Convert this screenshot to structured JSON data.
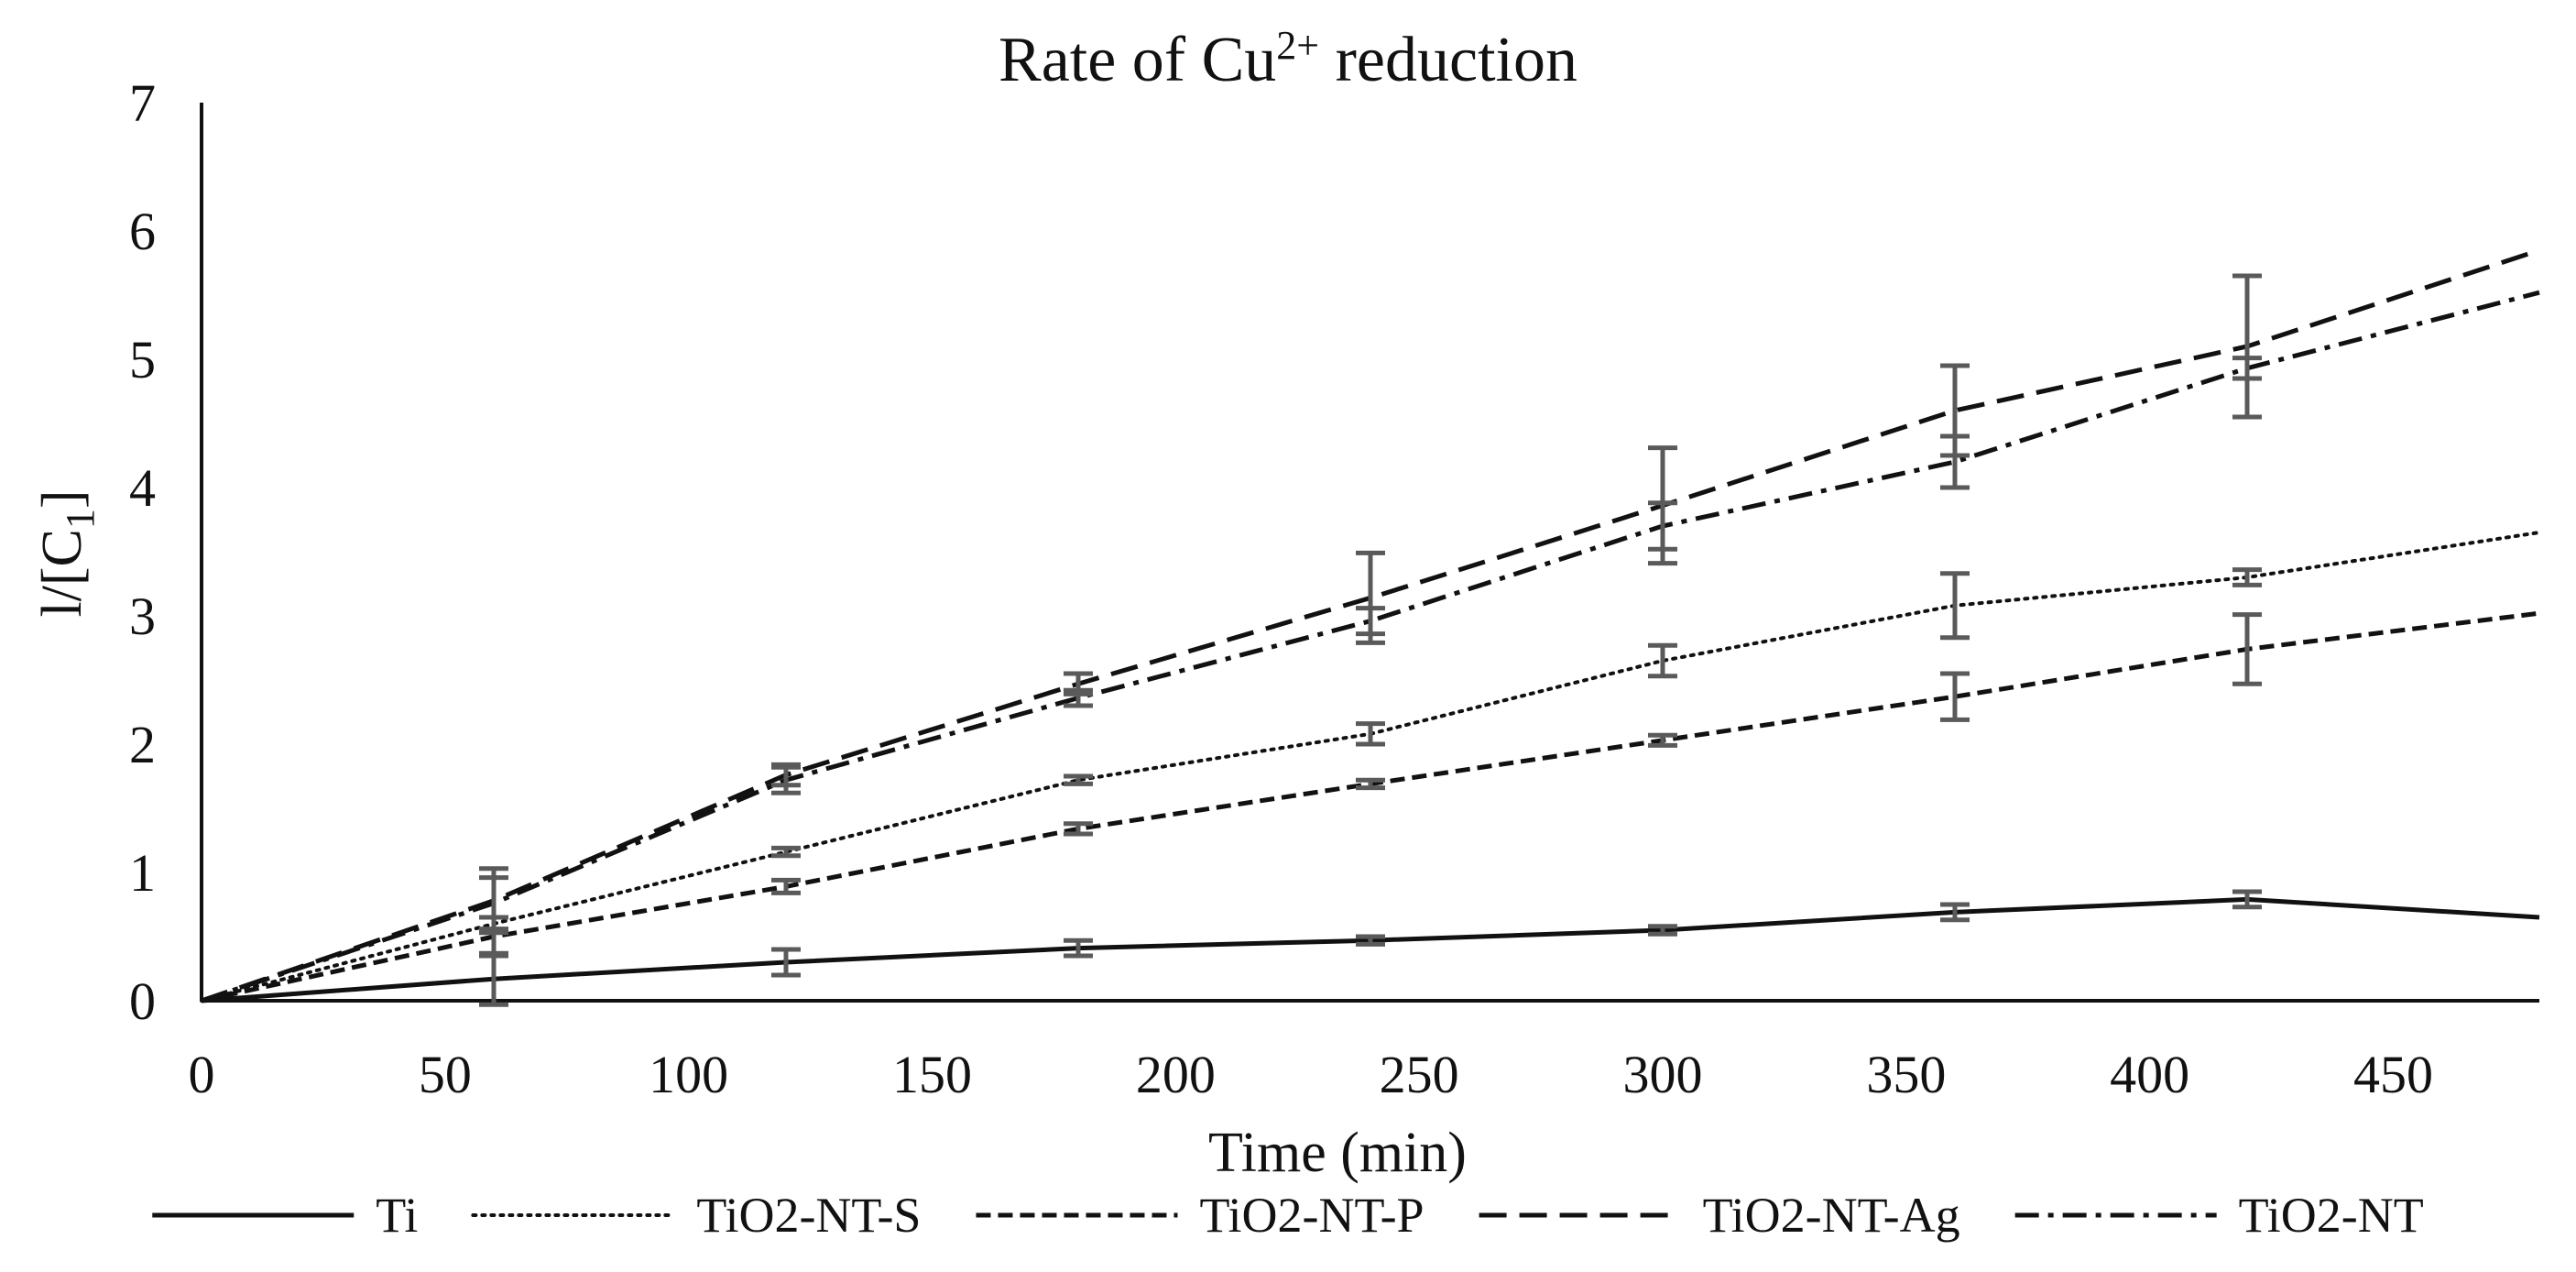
{
  "chart_data": {
    "type": "line",
    "title": {
      "main": "Rate of Cu",
      "superscript": "2+",
      "suffix": " reduction"
    },
    "xlabel": "Time (min)",
    "ylabel": {
      "main": "l/[C",
      "subscript": "1",
      "suffix": "]"
    },
    "xlim": [
      0,
      480
    ],
    "ylim": [
      0,
      7
    ],
    "x_ticks": [
      0,
      50,
      100,
      150,
      200,
      250,
      300,
      350,
      400,
      450
    ],
    "y_ticks": [
      0,
      1,
      2,
      3,
      4,
      5,
      6,
      7
    ],
    "grid": false,
    "legend_position": "bottom",
    "series": [
      {
        "name": "Ti",
        "style": "solid",
        "x": [
          0,
          60,
          120,
          180,
          240,
          300,
          360,
          420,
          480
        ],
        "y": [
          0,
          0.17,
          0.3,
          0.41,
          0.47,
          0.55,
          0.69,
          0.79,
          0.65
        ],
        "error": [
          0,
          0.2,
          0.1,
          0.06,
          0.03,
          0.03,
          0.06,
          0.06,
          null
        ]
      },
      {
        "name": "TiO2-NT-S",
        "style": "dotted",
        "x": [
          0,
          60,
          120,
          180,
          240,
          300,
          360,
          420,
          480
        ],
        "y": [
          0,
          0.6,
          1.16,
          1.72,
          2.08,
          2.65,
          3.08,
          3.3,
          3.65
        ],
        "error": [
          0,
          0.05,
          0.03,
          0.03,
          0.08,
          0.12,
          0.25,
          0.06,
          null
        ]
      },
      {
        "name": "TiO2-NT-P",
        "style": "short-dash",
        "x": [
          0,
          60,
          120,
          180,
          240,
          300,
          360,
          420,
          480
        ],
        "y": [
          0,
          0.5,
          0.89,
          1.34,
          1.69,
          2.03,
          2.37,
          2.74,
          3.02
        ],
        "error": [
          0,
          0.15,
          0.05,
          0.04,
          0.03,
          0.04,
          0.18,
          0.27,
          null
        ]
      },
      {
        "name": "TiO2-NT-Ag",
        "style": "long-dash",
        "x": [
          0,
          60,
          120,
          180,
          240,
          300,
          360,
          420,
          480
        ],
        "y": [
          0,
          0.78,
          1.76,
          2.47,
          3.14,
          3.86,
          4.6,
          5.1,
          5.85
        ],
        "error": [
          0,
          0.25,
          0.08,
          0.08,
          0.35,
          0.45,
          0.35,
          0.55,
          null
        ]
      },
      {
        "name": "TiO2-NT",
        "style": "dash-dot",
        "x": [
          0,
          60,
          120,
          180,
          240,
          300,
          360,
          420,
          480
        ],
        "y": [
          0,
          0.76,
          1.72,
          2.36,
          2.96,
          3.7,
          4.2,
          4.93,
          5.52
        ],
        "error": [
          0,
          0.2,
          0.1,
          0.06,
          0.1,
          0.18,
          0.2,
          0.08,
          null
        ]
      }
    ],
    "colors": {
      "line": "#111111",
      "error_bar": "#5a5a5a",
      "axis": "#111111"
    }
  }
}
